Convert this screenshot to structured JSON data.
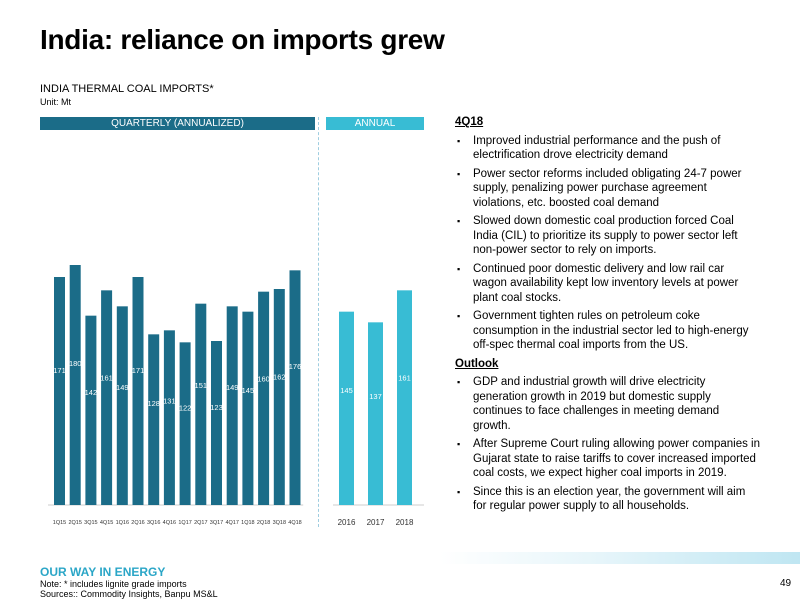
{
  "page_title": "India: reliance on imports grew",
  "chart_title": "INDIA THERMAL COAL IMPORTS*",
  "chart_unit": "Unit: Mt",
  "quarterly_label": "QUARTERLY (ANNUALIZED)",
  "annual_label": "ANNUAL",
  "colors": {
    "quarterly_bar": "#1b6c88",
    "annual_bar": "#38bcd4",
    "accent": "#2ba6c7"
  },
  "chart_data": [
    {
      "type": "bar",
      "title": "QUARTERLY (ANNUALIZED)",
      "categories": [
        "1Q15",
        "2Q15",
        "3Q15",
        "4Q15",
        "1Q16",
        "2Q16",
        "3Q16",
        "4Q16",
        "1Q17",
        "2Q17",
        "3Q17",
        "4Q17",
        "1Q18",
        "2Q18",
        "3Q18",
        "4Q18"
      ],
      "values": [
        171,
        180,
        142,
        161,
        149,
        171,
        128,
        131,
        122,
        151,
        123,
        149,
        145,
        160,
        162,
        176
      ],
      "ylim": [
        0,
        300
      ]
    },
    {
      "type": "bar",
      "title": "ANNUAL",
      "categories": [
        "2016",
        "2017",
        "2018"
      ],
      "values": [
        145,
        137,
        161
      ],
      "ylim": [
        0,
        300
      ]
    }
  ],
  "commentary": {
    "heading": "4Q18",
    "bullets": [
      "Improved industrial performance and the push of electrification drove electricity demand",
      "Power sector reforms included obligating 24-7 power supply, penalizing power purchase agreement violations, etc. boosted coal demand",
      "Slowed down domestic coal production forced Coal India (CIL) to prioritize its supply to power sector left non-power sector to rely on imports.",
      "Continued poor domestic delivery and low rail car wagon availability kept low inventory levels at power plant coal stocks.",
      "Government tighten rules on petroleum coke consumption in the industrial sector led to high-energy off-spec thermal coal imports from the US."
    ]
  },
  "outlook": {
    "heading": "Outlook",
    "bullets": [
      "GDP and industrial growth will drive electricity generation growth in 2019 but domestic supply continues to face challenges in meeting demand growth.",
      "After Supreme Court ruling allowing power companies in Gujarat state to raise tariffs to cover increased imported coal costs, we expect higher coal imports in 2019.",
      "Since this is an election year, the government will aim for regular power supply to all households."
    ]
  },
  "bullet_char": "▪",
  "footer": {
    "brand": "OUR WAY IN ENERGY",
    "note": "Note: * includes lignite grade imports",
    "sources": "Sources:: Commodity Insights, Banpu MS&L",
    "page_number": "49"
  }
}
